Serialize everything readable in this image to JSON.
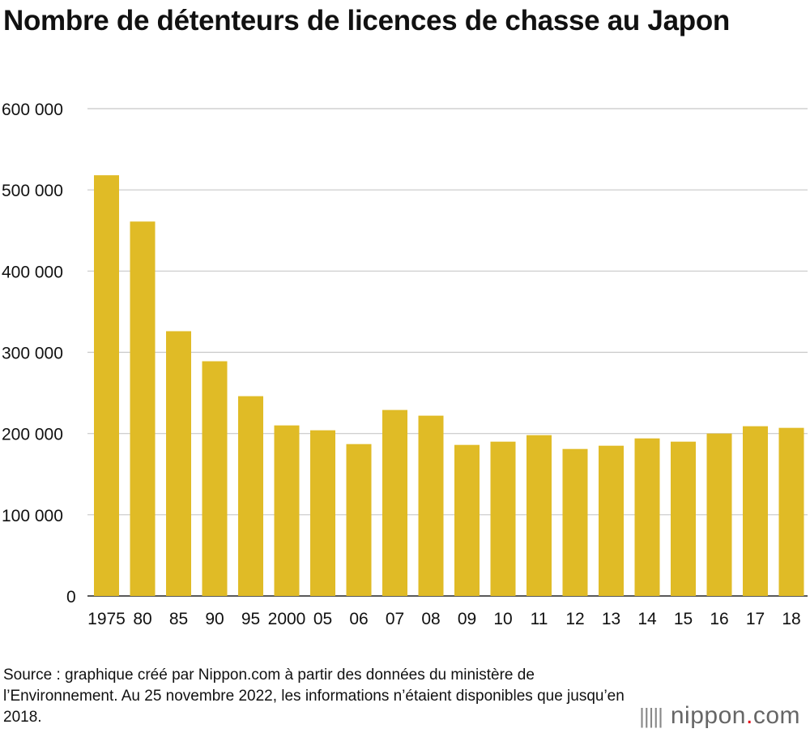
{
  "title": "Nombre de détenteurs de licences de chasse au Japon",
  "chart_data": {
    "type": "bar",
    "title": "Nombre de détenteurs de licences de chasse au Japon",
    "xlabel": "",
    "ylabel": "",
    "ylim": [
      0,
      600000
    ],
    "y_ticks": [
      0,
      100000,
      200000,
      300000,
      400000,
      500000,
      600000
    ],
    "y_tick_labels": [
      "0",
      "100 000",
      "200 000",
      "300 000",
      "400 000",
      "500 000",
      "600 000"
    ],
    "grid": true,
    "bar_color": "#e0bb26",
    "categories": [
      "1975",
      "80",
      "85",
      "90",
      "95",
      "2000",
      "05",
      "06",
      "07",
      "08",
      "09",
      "10",
      "11",
      "12",
      "13",
      "14",
      "15",
      "16",
      "17",
      "18"
    ],
    "values": [
      518000,
      461000,
      326000,
      289000,
      246000,
      210000,
      204000,
      187000,
      229000,
      222000,
      186000,
      190000,
      198000,
      181000,
      185000,
      194000,
      190000,
      200000,
      209000,
      207000
    ]
  },
  "source": "Source : graphique créé par Nippon.com à partir des données du ministère de l’Environnement. Au 25 novembre 2022, les informations n’étaient disponibles que jusqu’en 2018.",
  "brand": {
    "mark": "|||||",
    "name": "nippon",
    "dot": ".",
    "suffix": "com"
  }
}
